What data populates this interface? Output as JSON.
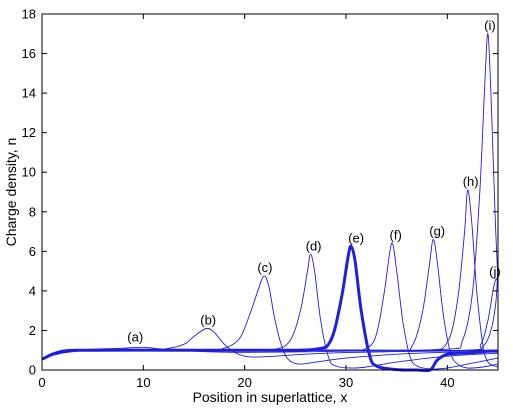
{
  "chart_data": {
    "type": "line",
    "xlabel": "Position in superlattice, x",
    "ylabel": "Charge density, n",
    "xlim": [
      0,
      45
    ],
    "ylim": [
      0,
      18
    ],
    "xticks": [
      0,
      10,
      20,
      30,
      40
    ],
    "yticks": [
      0,
      2,
      4,
      6,
      8,
      10,
      12,
      14,
      16,
      18
    ],
    "grid": false,
    "line_color": "#1f1fdd",
    "series": [
      {
        "label": "(a)",
        "bold": false,
        "points": [
          [
            0,
            0.55
          ],
          [
            1,
            0.85
          ],
          [
            3,
            1.0
          ],
          [
            5,
            1.05
          ],
          [
            8,
            1.1
          ],
          [
            10,
            1.15
          ],
          [
            12,
            1.05
          ],
          [
            15,
            0.95
          ],
          [
            18,
            0.9
          ],
          [
            22,
            0.9
          ],
          [
            26,
            0.92
          ],
          [
            30,
            0.95
          ],
          [
            35,
            0.97
          ],
          [
            40,
            0.98
          ],
          [
            45,
            1.0
          ]
        ]
      },
      {
        "label": "(b)",
        "bold": false,
        "points": [
          [
            0,
            0.55
          ],
          [
            2,
            0.95
          ],
          [
            5,
            1.0
          ],
          [
            10,
            1.0
          ],
          [
            12,
            1.05
          ],
          [
            14,
            1.3
          ],
          [
            15,
            1.7
          ],
          [
            16.2,
            2.1
          ],
          [
            17,
            1.9
          ],
          [
            18,
            1.3
          ],
          [
            19,
            0.9
          ],
          [
            20,
            0.7
          ],
          [
            21,
            0.65
          ],
          [
            23,
            0.7
          ],
          [
            26,
            0.8
          ],
          [
            30,
            0.88
          ],
          [
            35,
            0.93
          ],
          [
            40,
            0.96
          ],
          [
            45,
            1.0
          ]
        ]
      },
      {
        "label": "(c)",
        "bold": false,
        "points": [
          [
            0,
            0.55
          ],
          [
            2,
            0.95
          ],
          [
            5,
            1.0
          ],
          [
            12,
            1.0
          ],
          [
            16,
            0.98
          ],
          [
            18,
            1.1
          ],
          [
            19.5,
            1.6
          ],
          [
            20.5,
            2.8
          ],
          [
            21.3,
            4.0
          ],
          [
            21.9,
            4.75
          ],
          [
            22.4,
            4.2
          ],
          [
            23.0,
            2.5
          ],
          [
            23.8,
            1.0
          ],
          [
            24.5,
            0.45
          ],
          [
            25.5,
            0.3
          ],
          [
            27,
            0.4
          ],
          [
            30,
            0.6
          ],
          [
            35,
            0.8
          ],
          [
            40,
            0.9
          ],
          [
            45,
            0.95
          ]
        ]
      },
      {
        "label": "(d)",
        "bold": false,
        "points": [
          [
            0,
            0.55
          ],
          [
            2,
            0.95
          ],
          [
            5,
            1.0
          ],
          [
            15,
            1.0
          ],
          [
            20,
            1.0
          ],
          [
            23,
            1.05
          ],
          [
            24.5,
            1.5
          ],
          [
            25.5,
            3.0
          ],
          [
            26.2,
            5.0
          ],
          [
            26.5,
            5.85
          ],
          [
            26.9,
            5.0
          ],
          [
            27.5,
            2.5
          ],
          [
            28.3,
            0.6
          ],
          [
            29,
            0.2
          ],
          [
            30.5,
            0.1
          ],
          [
            32,
            0.15
          ],
          [
            35,
            0.4
          ],
          [
            40,
            0.7
          ],
          [
            45,
            0.85
          ]
        ]
      },
      {
        "label": "(e)",
        "bold": true,
        "points": [
          [
            0,
            0.55
          ],
          [
            2,
            0.95
          ],
          [
            5,
            1.0
          ],
          [
            15,
            1.0
          ],
          [
            22,
            1.0
          ],
          [
            27,
            1.05
          ],
          [
            28.5,
            1.5
          ],
          [
            29.5,
            3.5
          ],
          [
            30.2,
            5.7
          ],
          [
            30.5,
            6.25
          ],
          [
            30.9,
            5.5
          ],
          [
            31.5,
            3.0
          ],
          [
            32.3,
            0.8
          ],
          [
            33,
            0.2
          ],
          [
            35,
            0.02
          ],
          [
            37,
            0.0
          ],
          [
            38.3,
            0.0
          ],
          [
            39,
            0.5
          ],
          [
            40,
            0.8
          ],
          [
            41,
            0.85
          ],
          [
            43,
            0.9
          ],
          [
            44,
            0.95
          ],
          [
            45,
            0.95
          ]
        ]
      },
      {
        "label": "(f)",
        "bold": false,
        "points": [
          [
            0,
            0.6
          ],
          [
            5,
            1.0
          ],
          [
            20,
            1.0
          ],
          [
            30,
            1.0
          ],
          [
            32,
            1.1
          ],
          [
            33,
            1.8
          ],
          [
            33.8,
            4.0
          ],
          [
            34.5,
            6.4
          ],
          [
            35.0,
            5.0
          ],
          [
            35.6,
            2.5
          ],
          [
            36.3,
            0.7
          ],
          [
            37,
            0.2
          ],
          [
            38.5,
            0.05
          ],
          [
            40,
            0.1
          ],
          [
            42,
            0.3
          ],
          [
            45,
            0.6
          ]
        ]
      },
      {
        "label": "(g)",
        "bold": false,
        "points": [
          [
            0,
            0.6
          ],
          [
            5,
            1.0
          ],
          [
            25,
            1.0
          ],
          [
            35,
            1.0
          ],
          [
            36.5,
            1.2
          ],
          [
            37.5,
            2.8
          ],
          [
            38.2,
            5.2
          ],
          [
            38.6,
            6.6
          ],
          [
            39.0,
            5.5
          ],
          [
            39.6,
            2.8
          ],
          [
            40.3,
            0.9
          ],
          [
            41,
            0.3
          ],
          [
            42,
            0.1
          ],
          [
            43.5,
            0.15
          ],
          [
            45,
            0.3
          ]
        ]
      },
      {
        "label": "(h)",
        "bold": false,
        "points": [
          [
            0,
            0.6
          ],
          [
            5,
            1.0
          ],
          [
            30,
            1.0
          ],
          [
            38,
            1.0
          ],
          [
            40,
            1.4
          ],
          [
            41,
            3.5
          ],
          [
            41.7,
            7.0
          ],
          [
            42.0,
            9.1
          ],
          [
            42.4,
            7.5
          ],
          [
            42.9,
            4.0
          ],
          [
            43.5,
            1.3
          ],
          [
            44,
            0.4
          ],
          [
            45,
            0.15
          ]
        ]
      },
      {
        "label": "(i)",
        "bold": false,
        "points": [
          [
            0,
            0.6
          ],
          [
            5,
            1.0
          ],
          [
            30,
            1.0
          ],
          [
            40,
            1.05
          ],
          [
            41.5,
            1.5
          ],
          [
            42.5,
            4.0
          ],
          [
            43.2,
            9.0
          ],
          [
            43.7,
            14.5
          ],
          [
            44.0,
            17.0
          ],
          [
            44.3,
            14.0
          ],
          [
            44.7,
            8.0
          ],
          [
            45,
            4.5
          ]
        ]
      },
      {
        "label": "(j)",
        "bold": false,
        "points": [
          [
            0,
            0.6
          ],
          [
            5,
            1.0
          ],
          [
            30,
            1.0
          ],
          [
            42,
            1.0
          ],
          [
            43.3,
            1.3
          ],
          [
            44.0,
            2.5
          ],
          [
            44.5,
            4.0
          ],
          [
            44.8,
            4.6
          ],
          [
            45,
            4.4
          ]
        ]
      },
      {
        "label": "",
        "bold": false,
        "points": [
          [
            0,
            0.6
          ],
          [
            5,
            1.0
          ],
          [
            30,
            1.0
          ],
          [
            42,
            1.0
          ],
          [
            43.5,
            1.2
          ],
          [
            44.3,
            2.0
          ],
          [
            44.8,
            3.5
          ],
          [
            45,
            5.5
          ]
        ]
      }
    ],
    "annotations": [
      {
        "text": "(a)",
        "x": 9.2,
        "y": 1.45
      },
      {
        "text": "(b)",
        "x": 16.4,
        "y": 2.3
      },
      {
        "text": "(c)",
        "x": 22.0,
        "y": 4.95
      },
      {
        "text": "(d)",
        "x": 26.8,
        "y": 6.05
      },
      {
        "text": "(e)",
        "x": 31.0,
        "y": 6.45
      },
      {
        "text": "(f)",
        "x": 34.9,
        "y": 6.6
      },
      {
        "text": "(g)",
        "x": 39.0,
        "y": 6.8
      },
      {
        "text": "(h)",
        "x": 42.3,
        "y": 9.3
      },
      {
        "text": "(i)",
        "x": 44.2,
        "y": 17.2
      },
      {
        "text": "(j)",
        "x": 44.7,
        "y": 4.75
      }
    ]
  }
}
